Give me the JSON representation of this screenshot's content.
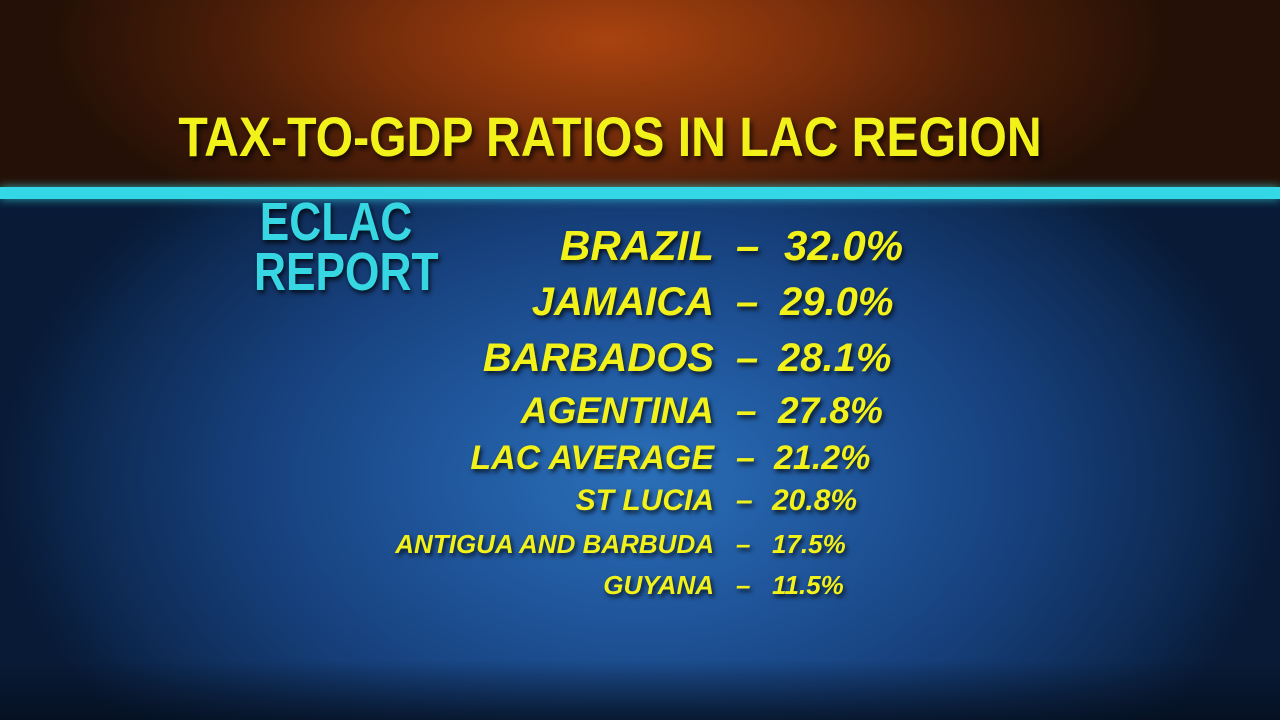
{
  "title": "TAX-TO-GDP RATIOS IN LAC REGION",
  "source": {
    "line1": "ECLAC",
    "line2": "REPORT"
  },
  "colors": {
    "title_text": "#f2f21a",
    "source_text": "#36d6e3",
    "divider": "#33d7e6",
    "top_background": "#7a2f0b",
    "bottom_background": "#1f5499"
  },
  "rows": [
    {
      "label": "BRAZIL",
      "dash": "–",
      "value": "32.0%"
    },
    {
      "label": "JAMAICA",
      "dash": "–",
      "value": "29.0%"
    },
    {
      "label": "BARBADOS",
      "dash": "–",
      "value": "28.1%"
    },
    {
      "label": "AGENTINA",
      "dash": "–",
      "value": "27.8%"
    },
    {
      "label": "LAC AVERAGE",
      "dash": "–",
      "value": "21.2%"
    },
    {
      "label": "ST LUCIA",
      "dash": "–",
      "value": "20.8%"
    },
    {
      "label": "ANTIGUA AND BARBUDA",
      "dash": "–",
      "value": "17.5%"
    },
    {
      "label": "GUYANA",
      "dash": "–",
      "value": "11.5%"
    }
  ]
}
